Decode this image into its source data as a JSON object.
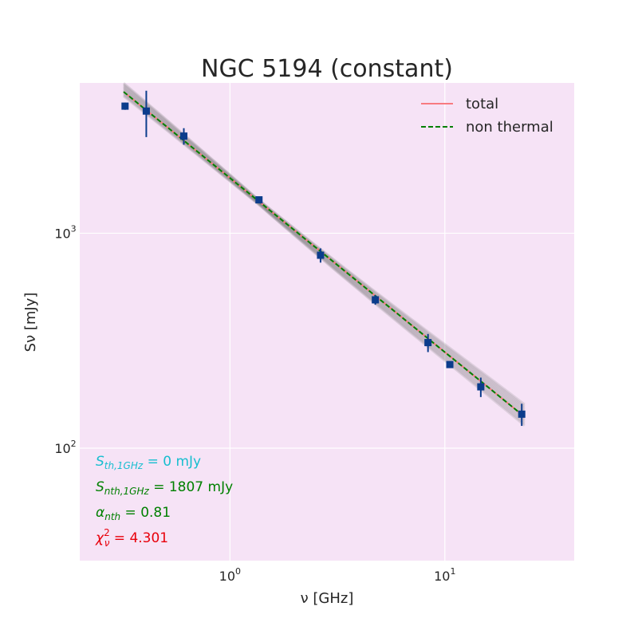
{
  "chart_data": {
    "type": "scatter",
    "title": "NGC 5194 (constant)",
    "xlabel": "ν [GHz]",
    "ylabel": "Sν [mJy]",
    "xscale": "log",
    "yscale": "log",
    "xlim": [
      0.2,
      40
    ],
    "ylim": [
      30,
      5000
    ],
    "x_ticks": [
      {
        "value": 1,
        "base": "10",
        "exp": "0"
      },
      {
        "value": 10,
        "base": "10",
        "exp": "1"
      }
    ],
    "y_ticks": [
      {
        "value": 100,
        "base": "10",
        "exp": "2"
      },
      {
        "value": 1000,
        "base": "10",
        "exp": "3"
      }
    ],
    "grid": true,
    "legend_position": "top-right",
    "legend": [
      {
        "label": "total",
        "color": "#f87a80",
        "style": "solid"
      },
      {
        "label": "non thermal",
        "color": "#008000",
        "style": "dashed"
      }
    ],
    "points": [
      {
        "x": 0.325,
        "y": 3900,
        "err": 150
      },
      {
        "x": 0.408,
        "y": 3700,
        "err": 900
      },
      {
        "x": 0.61,
        "y": 2830,
        "err": 250
      },
      {
        "x": 1.365,
        "y": 1430,
        "err": 50
      },
      {
        "x": 2.64,
        "y": 790,
        "err": 60
      },
      {
        "x": 4.75,
        "y": 490,
        "err": 25
      },
      {
        "x": 8.35,
        "y": 310,
        "err": 30
      },
      {
        "x": 10.55,
        "y": 245,
        "err": 8
      },
      {
        "x": 14.7,
        "y": 193,
        "err": 20
      },
      {
        "x": 22.8,
        "y": 144,
        "err": 17
      }
    ],
    "model": {
      "S_nth_1GHz": 1807,
      "alpha_nth": 0.81,
      "S_th_1GHz": 0
    },
    "annotations": [
      {
        "name": "S_th",
        "math": "S",
        "sub": "th,1GHz",
        "value": " = 0 mJy",
        "color": "#17becf"
      },
      {
        "name": "S_nth",
        "math": "S",
        "sub": "nth,1GHz",
        "value": " = 1807 mJy",
        "color": "#008000"
      },
      {
        "name": "alpha_nth",
        "math": "α",
        "sub": "nth",
        "value": " = 0.81",
        "color": "#008000"
      },
      {
        "name": "chi2",
        "math": "χ",
        "sub": "ν",
        "sup": "2",
        "value": " = 4.301",
        "color": "#e8000b"
      }
    ],
    "colors": {
      "background": "#f6e3f6",
      "grid": "#ffffff",
      "points": "#0b3c8c",
      "band": "#707070"
    }
  }
}
